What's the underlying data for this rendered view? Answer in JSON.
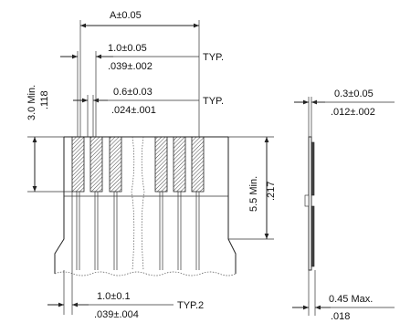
{
  "dimensions": {
    "width_a": "A±0.05",
    "pitch_mm": "1.0±0.05",
    "pitch_in": ".039±.002",
    "pitch_typ": "TYP.",
    "contact_mm": "0.6±0.03",
    "contact_in": ".024±.001",
    "contact_typ": "TYP.",
    "insert_mm": "3.0 Min.",
    "insert_in": ".118",
    "stiffener_mm": "5.5 Min.",
    "stiffener_in": ".217",
    "end_mm": "1.0±0.1",
    "end_in": ".039±.004",
    "end_typ": "TYP.2",
    "thick_mm": "0.3±0.05",
    "thick_in": ".012±.002",
    "total_mm": "0.45 Max.",
    "total_in": ".018"
  },
  "colors": {
    "line": "#222222",
    "hatch": "#333333",
    "background": "#ffffff"
  }
}
